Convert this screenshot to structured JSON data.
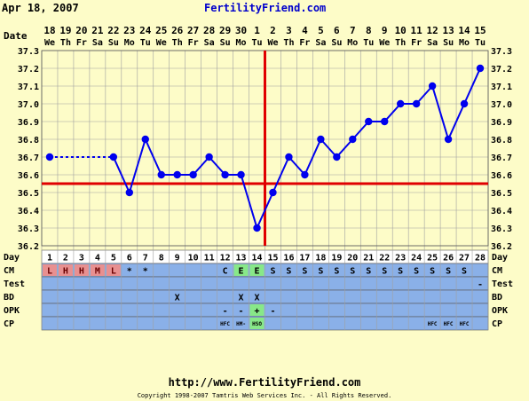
{
  "header": {
    "date_stamp": "Apr 18, 2007",
    "site_name": "FertilityFriend.com"
  },
  "footer": {
    "url": "http://www.FertilityFriend.com",
    "copyright": "Copyright 1998-2007 Tamtris Web Services Inc. - All Rights Reserved."
  },
  "colors": {
    "background": "#fdfcc8",
    "grid": "#a0a0a0",
    "line": "#0000ee",
    "coverline": "#e00000",
    "row_fill": "#8ab0e8",
    "menstrual_fill": "#e89090",
    "fertile_fill": "#88e888"
  },
  "chart_data": {
    "type": "line",
    "row_labels": {
      "date": "Date",
      "day": "Day",
      "cm": "CM",
      "test": "Test",
      "bd": "BD",
      "opk": "OPK",
      "cp": "CP"
    },
    "dates": [
      "18",
      "19",
      "20",
      "21",
      "22",
      "23",
      "24",
      "25",
      "26",
      "27",
      "28",
      "29",
      "30",
      "1",
      "2",
      "3",
      "4",
      "5",
      "6",
      "7",
      "8",
      "9",
      "10",
      "11",
      "12",
      "13",
      "14",
      "15"
    ],
    "weekdays": [
      "We",
      "Th",
      "Fr",
      "Sa",
      "Su",
      "Mo",
      "Tu",
      "We",
      "Th",
      "Fr",
      "Sa",
      "Su",
      "Mo",
      "Tu",
      "We",
      "Th",
      "Fr",
      "Sa",
      "Su",
      "Mo",
      "Tu",
      "We",
      "Th",
      "Fr",
      "Sa",
      "Su",
      "Mo",
      "Tu"
    ],
    "cycle_days": [
      "1",
      "2",
      "3",
      "4",
      "5",
      "6",
      "7",
      "8",
      "9",
      "10",
      "11",
      "12",
      "13",
      "14",
      "15",
      "16",
      "17",
      "18",
      "19",
      "20",
      "21",
      "22",
      "23",
      "24",
      "25",
      "26",
      "27",
      "28"
    ],
    "temperatures": [
      36.7,
      null,
      null,
      null,
      36.7,
      36.5,
      36.8,
      36.6,
      36.6,
      36.6,
      36.7,
      36.6,
      36.6,
      36.3,
      36.5,
      36.7,
      36.6,
      36.8,
      36.7,
      36.8,
      36.9,
      36.9,
      37.0,
      37.0,
      37.1,
      36.8,
      37.0,
      37.2
    ],
    "y_ticks": [
      "37.3",
      "37.2",
      "37.1",
      "37.0",
      "36.9",
      "36.8",
      "36.7",
      "36.6",
      "36.5",
      "36.4",
      "36.3",
      "36.2"
    ],
    "ylim": [
      36.2,
      37.3
    ],
    "coverline": 36.55,
    "ovulation_day": 15,
    "cervical_mucus": [
      "L",
      "H",
      "H",
      "M",
      "L",
      "*",
      "*",
      "",
      "",
      "",
      "",
      "C",
      "E",
      "E",
      "S",
      "S",
      "S",
      "S",
      "S",
      "S",
      "S",
      "S",
      "S",
      "S",
      "S",
      "S",
      "S",
      ""
    ],
    "test": [
      "",
      "",
      "",
      "",
      "",
      "",
      "",
      "",
      "",
      "",
      "",
      "",
      "",
      "",
      "",
      "",
      "",
      "",
      "",
      "",
      "",
      "",
      "",
      "",
      "",
      "",
      "",
      "-"
    ],
    "bd": [
      "",
      "",
      "",
      "",
      "",
      "",
      "",
      "",
      "X",
      "",
      "",
      "",
      "X",
      "X",
      "",
      "",
      "",
      "",
      "",
      "",
      "",
      "",
      "",
      "",
      "",
      "",
      "",
      ""
    ],
    "opk": [
      "",
      "",
      "",
      "",
      "",
      "",
      "",
      "",
      "",
      "",
      "",
      "-",
      "-",
      "+",
      "-",
      "",
      "",
      "",
      "",
      "",
      "",
      "",
      "",
      "",
      "",
      "",
      "",
      ""
    ],
    "cp": [
      "",
      "",
      "",
      "",
      "",
      "",
      "",
      "",
      "",
      "",
      "",
      "HFC",
      "HM-",
      "HSO",
      "",
      "",
      "",
      "",
      "",
      "",
      "",
      "",
      "",
      "",
      "HFC",
      "HFC",
      "HFC",
      ""
    ]
  }
}
